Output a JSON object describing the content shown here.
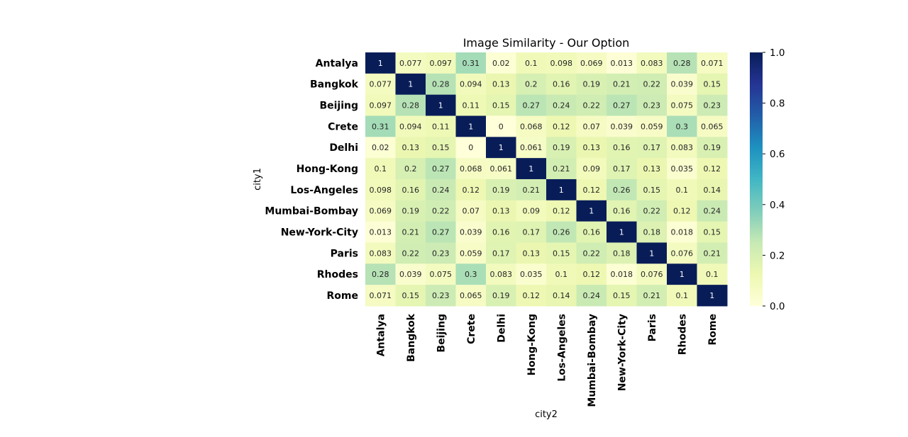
{
  "chart_data": {
    "type": "heatmap",
    "title": "Image Similarity - Our Option",
    "xlabel": "city2",
    "ylabel": "city1",
    "rows": [
      "Antalya",
      "Bangkok",
      "Beijing",
      "Crete",
      "Delhi",
      "Hong-Kong",
      "Los-Angeles",
      "Mumbai-Bombay",
      "New-York-City",
      "Paris",
      "Rhodes",
      "Rome"
    ],
    "columns": [
      "Antalya",
      "Bangkok",
      "Beijing",
      "Crete",
      "Delhi",
      "Hong-Kong",
      "Los-Angeles",
      "Mumbai-Bombay",
      "New-York-City",
      "Paris",
      "Rhodes",
      "Rome"
    ],
    "values": [
      [
        1,
        0.077,
        0.097,
        0.31,
        0.02,
        0.1,
        0.098,
        0.069,
        0.013,
        0.083,
        0.28,
        0.071
      ],
      [
        0.077,
        1,
        0.28,
        0.094,
        0.13,
        0.2,
        0.16,
        0.19,
        0.21,
        0.22,
        0.039,
        0.15
      ],
      [
        0.097,
        0.28,
        1,
        0.11,
        0.15,
        0.27,
        0.24,
        0.22,
        0.27,
        0.23,
        0.075,
        0.23
      ],
      [
        0.31,
        0.094,
        0.11,
        1,
        0,
        0.068,
        0.12,
        0.07,
        0.039,
        0.059,
        0.3,
        0.065
      ],
      [
        0.02,
        0.13,
        0.15,
        0,
        1,
        0.061,
        0.19,
        0.13,
        0.16,
        0.17,
        0.083,
        0.19
      ],
      [
        0.1,
        0.2,
        0.27,
        0.068,
        0.061,
        1,
        0.21,
        0.09,
        0.17,
        0.13,
        0.035,
        0.12
      ],
      [
        0.098,
        0.16,
        0.24,
        0.12,
        0.19,
        0.21,
        1,
        0.12,
        0.26,
        0.15,
        0.1,
        0.14
      ],
      [
        0.069,
        0.19,
        0.22,
        0.07,
        0.13,
        0.09,
        0.12,
        1,
        0.16,
        0.22,
        0.12,
        0.24
      ],
      [
        0.013,
        0.21,
        0.27,
        0.039,
        0.16,
        0.17,
        0.26,
        0.16,
        1,
        0.18,
        0.018,
        0.15
      ],
      [
        0.083,
        0.22,
        0.23,
        0.059,
        0.17,
        0.13,
        0.15,
        0.22,
        0.18,
        1,
        0.076,
        0.21
      ],
      [
        0.28,
        0.039,
        0.075,
        0.3,
        0.083,
        0.035,
        0.1,
        0.12,
        0.018,
        0.076,
        1,
        0.1
      ],
      [
        0.071,
        0.15,
        0.23,
        0.065,
        0.19,
        0.12,
        0.14,
        0.24,
        0.15,
        0.21,
        0.1,
        1
      ]
    ],
    "colormap": "YlGnBu",
    "vmin": 0,
    "vmax": 1,
    "colorbar_ticks": [
      "0.0",
      "0.2",
      "0.4",
      "0.6",
      "0.8",
      "1.0"
    ],
    "annotated": true,
    "grid": false
  }
}
